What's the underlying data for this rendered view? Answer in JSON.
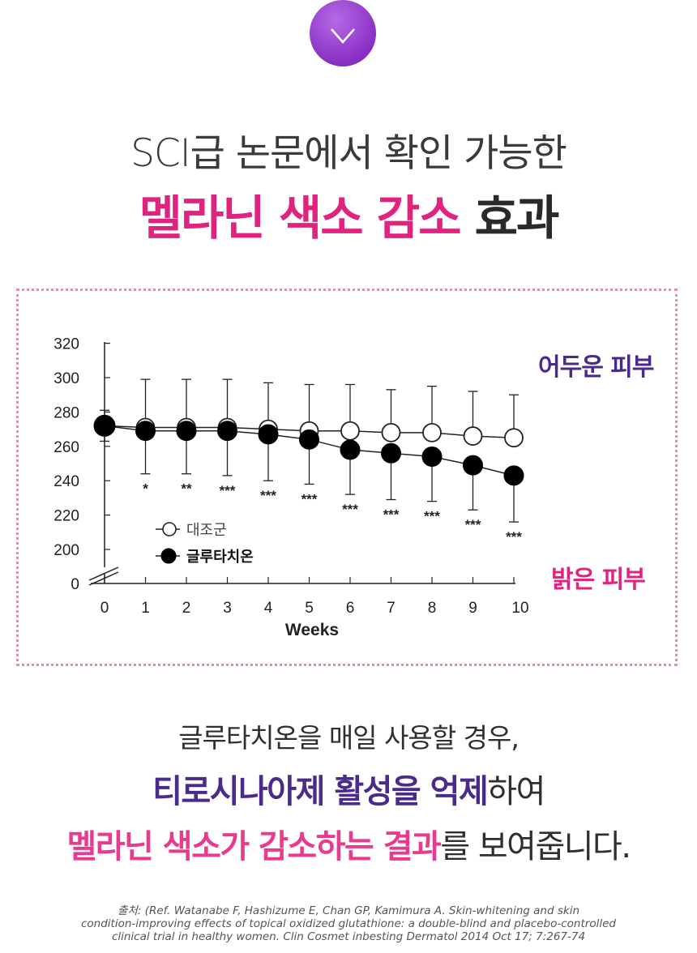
{
  "header": {
    "line1": "SCI급 논문에서 확인 가능한",
    "line2_pink": "멜라닌 색소 감소",
    "line2_dark": " 효과"
  },
  "side_labels": {
    "dark_skin": "어두운 피부",
    "bright_skin": "밝은 피부"
  },
  "chart_data": {
    "type": "line",
    "xlabel": "Weeks",
    "ylabel": "",
    "x": [
      0,
      1,
      2,
      3,
      4,
      5,
      6,
      7,
      8,
      9,
      10
    ],
    "y_ticks": [
      0,
      200,
      220,
      240,
      260,
      280,
      300,
      320
    ],
    "ylim": [
      190,
      320
    ],
    "axis_break": true,
    "series": [
      {
        "name": "대조군",
        "marker": "open-circle",
        "values": [
          272,
          271,
          271,
          271,
          270,
          269,
          269,
          268,
          268,
          266,
          265
        ],
        "error_upper": [
          281,
          299,
          299,
          299,
          297,
          296,
          296,
          293,
          295,
          292,
          290
        ]
      },
      {
        "name": "글루타치온",
        "marker": "filled-circle",
        "values": [
          272,
          269,
          269,
          269,
          267,
          264,
          258,
          256,
          254,
          249,
          243
        ],
        "error_lower": [
          263,
          244,
          244,
          243,
          240,
          238,
          232,
          229,
          228,
          223,
          216
        ]
      }
    ],
    "significance": [
      "",
      "*",
      "**",
      "***",
      "***",
      "***",
      "***",
      "***",
      "***",
      "***",
      "***"
    ],
    "legend_position": "lower-left"
  },
  "body": {
    "line1": "글루타치온을 매일 사용할 경우,",
    "line2_purple": "티로시나아제 활성을 억제",
    "line2_rest": "하여",
    "line3_pink": "멜라닌 색소가 감소하는 결과",
    "line3_rest": "를 보여줍니다."
  },
  "reference": {
    "line1": "출처: (Ref. Watanabe F, Hashizume E, Chan GP, Kamimura A. Skin-whitening and skin",
    "line2": "condition-improving effects of topical oxidized glutathione: a double-blind and placebo-controlled",
    "line3": "clinical trial in healthy women. Clin Cosmet inbesting Dermatol 2014 Oct 17; 7:267-74"
  },
  "colors": {
    "pink": "#e0237f",
    "purple": "#4a2a8a",
    "button_purple": "#8a2fc4"
  },
  "icons": {
    "scroll_button": "chevron-down-icon"
  }
}
